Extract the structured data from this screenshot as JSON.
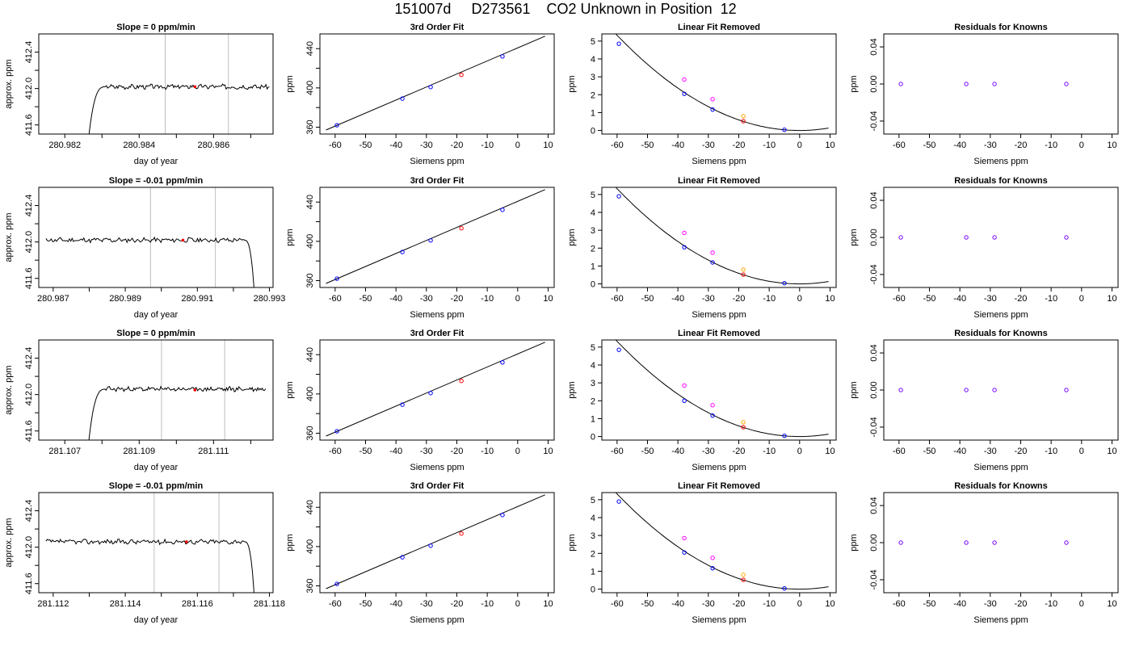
{
  "title": "151007d     D273561    CO2 Unknown in Position  12",
  "colors": {
    "unknown": "#ff0000",
    "known": "#0000ff",
    "raw": "#ff00ff",
    "other": "#ffa500",
    "line": "#000000",
    "mark": "#bebebe"
  },
  "chart_data": [
    {
      "row": 1,
      "type": "line",
      "title": "Slope =  0  ppm/min",
      "xlabel": "day of year",
      "ylabel": "approx. ppm",
      "xlim": [
        280.9813,
        280.9876
      ],
      "ylim": [
        411.5,
        412.6
      ],
      "xticks": [
        280.982,
        280.983,
        280.984,
        280.985,
        280.986,
        280.987
      ],
      "xtick_labels": [
        "280.982",
        "",
        "280.984",
        "",
        "280.986",
        ""
      ],
      "yticks": [
        411.6,
        411.8,
        412.0,
        412.2,
        412.4
      ],
      "ytick_labels": [
        "411.6",
        "",
        "412.0",
        "",
        "412.4"
      ],
      "markers": [
        280.9847,
        280.9864
      ],
      "unknown_point": [
        280.9855,
        412.02
      ],
      "trace": {
        "x_start": 280.9826,
        "x_end": 280.9875,
        "ramp": "up",
        "ramp_len": 0.0005,
        "base": 412.02,
        "seed": 3
      }
    },
    {
      "row": 1,
      "type": "scatter",
      "title": "3rd Order Fit",
      "xlabel": "Siemens ppm",
      "ylabel": "ppm",
      "xlim": [
        -65,
        12
      ],
      "ylim": [
        353,
        455
      ],
      "xticks": [
        -60,
        -50,
        -40,
        -30,
        -20,
        -10,
        0,
        10
      ],
      "xtick_labels": [
        "-60",
        "-50",
        "-40",
        "-30",
        "-20",
        "-10",
        "0",
        "10"
      ],
      "yticks": [
        360,
        380,
        400,
        420,
        440
      ],
      "ytick_labels": [
        "360",
        "",
        "400",
        "",
        "440"
      ],
      "line": [
        [
          -63,
          357.1
        ],
        [
          9,
          452.7
        ]
      ],
      "points": [
        {
          "x": -59.4,
          "y": 362.0,
          "c": "known"
        },
        {
          "x": -37.9,
          "y": 389.1,
          "c": "known"
        },
        {
          "x": -28.6,
          "y": 400.9,
          "c": "known"
        },
        {
          "x": -18.5,
          "y": 413.3,
          "c": "unknown"
        },
        {
          "x": -5.0,
          "y": 432.1,
          "c": "known"
        }
      ]
    },
    {
      "row": 1,
      "type": "scatter",
      "title": "Linear Fit Removed",
      "xlabel": "Siemens ppm",
      "ylabel": "ppm",
      "xlim": [
        -65,
        12
      ],
      "ylim": [
        -0.2,
        5.4
      ],
      "xticks": [
        -60,
        -50,
        -40,
        -30,
        -20,
        -10,
        0,
        10
      ],
      "xtick_labels": [
        "-60",
        "-50",
        "-40",
        "-30",
        "-20",
        "-10",
        "0",
        "10"
      ],
      "yticks": [
        0,
        1,
        2,
        3,
        4,
        5
      ],
      "ytick_labels": [
        "0",
        "1",
        "2",
        "3",
        "4",
        "5"
      ],
      "curve": {
        "a": 0.00148,
        "c": 0,
        "x0": -62,
        "x1": 9.5
      },
      "points": [
        {
          "x": -59.4,
          "y": 4.85,
          "c": "known"
        },
        {
          "x": -37.9,
          "y": 2.05,
          "c": "known"
        },
        {
          "x": -37.9,
          "y": 2.85,
          "c": "raw"
        },
        {
          "x": -28.6,
          "y": 1.17,
          "c": "known"
        },
        {
          "x": -28.6,
          "y": 1.75,
          "c": "raw"
        },
        {
          "x": -18.5,
          "y": 0.8,
          "c": "other"
        },
        {
          "x": -18.5,
          "y": 0.52,
          "c": "unknown"
        },
        {
          "x": -5.0,
          "y": 0.04,
          "c": "known"
        }
      ]
    },
    {
      "row": 1,
      "type": "scatter",
      "title": "Residuals for Knowns",
      "xlabel": "Siemens ppm",
      "ylabel": "ppm",
      "xlim": [
        -65,
        12
      ],
      "ylim": [
        -0.054,
        0.054
      ],
      "xticks": [
        -60,
        -50,
        -40,
        -30,
        -20,
        -10,
        0,
        10
      ],
      "xtick_labels": [
        "-60",
        "-50",
        "-40",
        "-30",
        "-20",
        "-10",
        "0",
        "10"
      ],
      "yticks": [
        -0.04,
        0,
        0.04
      ],
      "ytick_labels": [
        "-0.04",
        "0.00",
        "0.04"
      ],
      "points": [
        {
          "x": -59.4,
          "y": 0,
          "c": "residual"
        },
        {
          "x": -37.9,
          "y": 0,
          "c": "residual"
        },
        {
          "x": -28.6,
          "y": 0,
          "c": "residual"
        },
        {
          "x": -5.0,
          "y": 0,
          "c": "residual"
        }
      ]
    },
    {
      "row": 2,
      "type": "line",
      "title": "Slope =  -0.01  ppm/min",
      "xlabel": "day of year",
      "ylabel": "approx. ppm",
      "xlim": [
        280.9866,
        280.9931
      ],
      "ylim": [
        411.5,
        412.6
      ],
      "xticks": [
        280.987,
        280.988,
        280.989,
        280.99,
        280.991,
        280.992,
        280.993
      ],
      "xtick_labels": [
        "280.987",
        "",
        "280.989",
        "",
        "280.991",
        "",
        "280.993"
      ],
      "yticks": [
        411.6,
        411.8,
        412.0,
        412.2,
        412.4
      ],
      "ytick_labels": [
        "411.6",
        "",
        "412.0",
        "",
        "412.4"
      ],
      "markers": [
        280.9897,
        280.9915
      ],
      "unknown_point": [
        280.9906,
        412.02
      ],
      "trace": {
        "x_start": 280.9868,
        "x_end": 280.9926,
        "ramp": "down",
        "ramp_len": 0.0003,
        "base": 412.02,
        "seed": 11
      }
    },
    {
      "row": 2,
      "type": "scatter",
      "title": "3rd Order Fit",
      "xlabel": "Siemens ppm",
      "ylabel": "ppm",
      "xlim": [
        -65,
        12
      ],
      "ylim": [
        353,
        455
      ],
      "xticks": [
        -60,
        -50,
        -40,
        -30,
        -20,
        -10,
        0,
        10
      ],
      "xtick_labels": [
        "-60",
        "-50",
        "-40",
        "-30",
        "-20",
        "-10",
        "0",
        "10"
      ],
      "yticks": [
        360,
        380,
        400,
        420,
        440
      ],
      "ytick_labels": [
        "360",
        "",
        "400",
        "",
        "440"
      ],
      "line": [
        [
          -63,
          357.1
        ],
        [
          9,
          452.7
        ]
      ],
      "points": [
        {
          "x": -59.4,
          "y": 362.0,
          "c": "known"
        },
        {
          "x": -37.9,
          "y": 389.1,
          "c": "known"
        },
        {
          "x": -28.6,
          "y": 400.9,
          "c": "known"
        },
        {
          "x": -18.5,
          "y": 413.3,
          "c": "unknown"
        },
        {
          "x": -5.0,
          "y": 432.1,
          "c": "known"
        }
      ]
    },
    {
      "row": 2,
      "type": "scatter",
      "title": "Linear Fit Removed",
      "xlabel": "Siemens ppm",
      "ylabel": "ppm",
      "xlim": [
        -65,
        12
      ],
      "ylim": [
        -0.2,
        5.4
      ],
      "xticks": [
        -60,
        -50,
        -40,
        -30,
        -20,
        -10,
        0,
        10
      ],
      "xtick_labels": [
        "-60",
        "-50",
        "-40",
        "-30",
        "-20",
        "-10",
        "0",
        "10"
      ],
      "yticks": [
        0,
        1,
        2,
        3,
        4,
        5
      ],
      "ytick_labels": [
        "0",
        "1",
        "2",
        "3",
        "4",
        "5"
      ],
      "curve": {
        "a": 0.00148,
        "c": 0,
        "x0": -62,
        "x1": 9.5
      },
      "points": [
        {
          "x": -59.4,
          "y": 4.9,
          "c": "known"
        },
        {
          "x": -37.9,
          "y": 2.05,
          "c": "known"
        },
        {
          "x": -37.9,
          "y": 2.85,
          "c": "raw"
        },
        {
          "x": -28.6,
          "y": 1.2,
          "c": "known"
        },
        {
          "x": -28.6,
          "y": 1.75,
          "c": "raw"
        },
        {
          "x": -18.5,
          "y": 0.8,
          "c": "other"
        },
        {
          "x": -18.5,
          "y": 0.52,
          "c": "unknown"
        },
        {
          "x": -5.0,
          "y": 0.04,
          "c": "known"
        }
      ]
    },
    {
      "row": 2,
      "type": "scatter",
      "title": "Residuals for Knowns",
      "xlabel": "Siemens ppm",
      "ylabel": "ppm",
      "xlim": [
        -65,
        12
      ],
      "ylim": [
        -0.054,
        0.054
      ],
      "xticks": [
        -60,
        -50,
        -40,
        -30,
        -20,
        -10,
        0,
        10
      ],
      "xtick_labels": [
        "-60",
        "-50",
        "-40",
        "-30",
        "-20",
        "-10",
        "0",
        "10"
      ],
      "yticks": [
        -0.04,
        0,
        0.04
      ],
      "ytick_labels": [
        "-0.04",
        "0.00",
        "0.04"
      ],
      "points": [
        {
          "x": -59.4,
          "y": 0,
          "c": "residual"
        },
        {
          "x": -37.9,
          "y": 0,
          "c": "residual"
        },
        {
          "x": -28.6,
          "y": 0,
          "c": "residual"
        },
        {
          "x": -5.0,
          "y": 0,
          "c": "residual"
        }
      ]
    },
    {
      "row": 3,
      "type": "line",
      "title": "Slope =  0  ppm/min",
      "xlabel": "day of year",
      "ylabel": "approx. ppm",
      "xlim": [
        281.1063,
        281.1126
      ],
      "ylim": [
        411.5,
        412.6
      ],
      "xticks": [
        281.107,
        281.108,
        281.109,
        281.11,
        281.111,
        281.112
      ],
      "xtick_labels": [
        "281.107",
        "",
        "281.109",
        "",
        "281.111",
        ""
      ],
      "yticks": [
        411.6,
        411.8,
        412.0,
        412.2,
        412.4
      ],
      "ytick_labels": [
        "411.6",
        "",
        "412.0",
        "",
        "412.4"
      ],
      "markers": [
        281.1096,
        281.1113
      ],
      "unknown_point": [
        281.1105,
        412.05
      ],
      "trace": {
        "x_start": 281.1076,
        "x_end": 281.1124,
        "ramp": "up",
        "ramp_len": 0.0005,
        "base": 412.06,
        "seed": 23
      }
    },
    {
      "row": 3,
      "type": "scatter",
      "title": "3rd Order Fit",
      "xlabel": "Siemens ppm",
      "ylabel": "ppm",
      "xlim": [
        -65,
        12
      ],
      "ylim": [
        353,
        455
      ],
      "xticks": [
        -60,
        -50,
        -40,
        -30,
        -20,
        -10,
        0,
        10
      ],
      "xtick_labels": [
        "-60",
        "-50",
        "-40",
        "-30",
        "-20",
        "-10",
        "0",
        "10"
      ],
      "yticks": [
        360,
        380,
        400,
        420,
        440
      ],
      "ytick_labels": [
        "360",
        "",
        "400",
        "",
        "440"
      ],
      "line": [
        [
          -63,
          357.1
        ],
        [
          9,
          452.7
        ]
      ],
      "points": [
        {
          "x": -59.4,
          "y": 362.0,
          "c": "known"
        },
        {
          "x": -37.9,
          "y": 389.1,
          "c": "known"
        },
        {
          "x": -28.6,
          "y": 400.9,
          "c": "known"
        },
        {
          "x": -18.5,
          "y": 413.3,
          "c": "unknown"
        },
        {
          "x": -5.0,
          "y": 432.1,
          "c": "known"
        }
      ]
    },
    {
      "row": 3,
      "type": "scatter",
      "title": "Linear Fit Removed",
      "xlabel": "Siemens ppm",
      "ylabel": "ppm",
      "xlim": [
        -65,
        12
      ],
      "ylim": [
        -0.2,
        5.4
      ],
      "xticks": [
        -60,
        -50,
        -40,
        -30,
        -20,
        -10,
        0,
        10
      ],
      "xtick_labels": [
        "-60",
        "-50",
        "-40",
        "-30",
        "-20",
        "-10",
        "0",
        "10"
      ],
      "yticks": [
        0,
        1,
        2,
        3,
        4,
        5
      ],
      "ytick_labels": [
        "0",
        "1",
        "2",
        "3",
        "4",
        "5"
      ],
      "curve": {
        "a": 0.00148,
        "c": 0,
        "x0": -62,
        "x1": 9.5
      },
      "points": [
        {
          "x": -59.4,
          "y": 4.85,
          "c": "known"
        },
        {
          "x": -37.9,
          "y": 2.0,
          "c": "known"
        },
        {
          "x": -37.9,
          "y": 2.85,
          "c": "raw"
        },
        {
          "x": -28.6,
          "y": 1.17,
          "c": "known"
        },
        {
          "x": -28.6,
          "y": 1.75,
          "c": "raw"
        },
        {
          "x": -18.5,
          "y": 0.8,
          "c": "other"
        },
        {
          "x": -18.5,
          "y": 0.52,
          "c": "unknown"
        },
        {
          "x": -5.0,
          "y": 0.04,
          "c": "known"
        }
      ]
    },
    {
      "row": 3,
      "type": "scatter",
      "title": "Residuals for Knowns",
      "xlabel": "Siemens ppm",
      "ylabel": "ppm",
      "xlim": [
        -65,
        12
      ],
      "ylim": [
        -0.054,
        0.054
      ],
      "xticks": [
        -60,
        -50,
        -40,
        -30,
        -20,
        -10,
        0,
        10
      ],
      "xtick_labels": [
        "-60",
        "-50",
        "-40",
        "-30",
        "-20",
        "-10",
        "0",
        "10"
      ],
      "yticks": [
        -0.04,
        0,
        0.04
      ],
      "ytick_labels": [
        "-0.04",
        "0.00",
        "0.04"
      ],
      "points": [
        {
          "x": -59.4,
          "y": 0,
          "c": "residual"
        },
        {
          "x": -37.9,
          "y": 0,
          "c": "residual"
        },
        {
          "x": -28.6,
          "y": 0,
          "c": "residual"
        },
        {
          "x": -5.0,
          "y": 0,
          "c": "residual"
        }
      ]
    },
    {
      "row": 4,
      "type": "line",
      "title": "Slope =  -0.01  ppm/min",
      "xlabel": "day of year",
      "ylabel": "approx. ppm",
      "xlim": [
        281.1116,
        281.1181
      ],
      "ylim": [
        411.5,
        412.6
      ],
      "xticks": [
        281.112,
        281.113,
        281.114,
        281.115,
        281.116,
        281.117,
        281.118
      ],
      "xtick_labels": [
        "281.112",
        "",
        "281.114",
        "",
        "281.116",
        "",
        "281.118"
      ],
      "yticks": [
        411.6,
        411.8,
        412.0,
        412.2,
        412.4
      ],
      "ytick_labels": [
        "411.6",
        "",
        "412.0",
        "",
        "412.4"
      ],
      "markers": [
        281.1148,
        281.1166
      ],
      "unknown_point": [
        281.1157,
        412.06
      ],
      "trace": {
        "x_start": 281.1118,
        "x_end": 281.1176,
        "ramp": "down",
        "ramp_len": 0.0003,
        "base": 412.06,
        "seed": 37
      }
    },
    {
      "row": 4,
      "type": "scatter",
      "title": "3rd Order Fit",
      "xlabel": "Siemens ppm",
      "ylabel": "ppm",
      "xlim": [
        -65,
        12
      ],
      "ylim": [
        353,
        455
      ],
      "xticks": [
        -60,
        -50,
        -40,
        -30,
        -20,
        -10,
        0,
        10
      ],
      "xtick_labels": [
        "-60",
        "-50",
        "-40",
        "-30",
        "-20",
        "-10",
        "0",
        "10"
      ],
      "yticks": [
        360,
        380,
        400,
        420,
        440
      ],
      "ytick_labels": [
        "360",
        "",
        "400",
        "",
        "440"
      ],
      "line": [
        [
          -63,
          357.1
        ],
        [
          9,
          452.7
        ]
      ],
      "points": [
        {
          "x": -59.4,
          "y": 362.0,
          "c": "known"
        },
        {
          "x": -37.9,
          "y": 389.1,
          "c": "known"
        },
        {
          "x": -28.6,
          "y": 400.9,
          "c": "known"
        },
        {
          "x": -18.5,
          "y": 413.3,
          "c": "unknown"
        },
        {
          "x": -5.0,
          "y": 432.1,
          "c": "known"
        }
      ]
    },
    {
      "row": 4,
      "type": "scatter",
      "title": "Linear Fit Removed",
      "xlabel": "Siemens ppm",
      "ylabel": "ppm",
      "xlim": [
        -65,
        12
      ],
      "ylim": [
        -0.2,
        5.4
      ],
      "xticks": [
        -60,
        -50,
        -40,
        -30,
        -20,
        -10,
        0,
        10
      ],
      "xtick_labels": [
        "-60",
        "-50",
        "-40",
        "-30",
        "-20",
        "-10",
        "0",
        "10"
      ],
      "yticks": [
        0,
        1,
        2,
        3,
        4,
        5
      ],
      "ytick_labels": [
        "0",
        "1",
        "2",
        "3",
        "4",
        "5"
      ],
      "curve": {
        "a": 0.00148,
        "c": 0,
        "x0": -62,
        "x1": 9.5
      },
      "points": [
        {
          "x": -59.4,
          "y": 4.9,
          "c": "known"
        },
        {
          "x": -37.9,
          "y": 2.05,
          "c": "known"
        },
        {
          "x": -37.9,
          "y": 2.85,
          "c": "raw"
        },
        {
          "x": -28.6,
          "y": 1.17,
          "c": "known"
        },
        {
          "x": -28.6,
          "y": 1.75,
          "c": "raw"
        },
        {
          "x": -18.5,
          "y": 0.8,
          "c": "other"
        },
        {
          "x": -18.5,
          "y": 0.52,
          "c": "unknown"
        },
        {
          "x": -5.0,
          "y": 0.04,
          "c": "known"
        }
      ]
    },
    {
      "row": 4,
      "type": "scatter",
      "title": "Residuals for Knowns",
      "xlabel": "Siemens ppm",
      "ylabel": "ppm",
      "xlim": [
        -65,
        12
      ],
      "ylim": [
        -0.054,
        0.054
      ],
      "xticks": [
        -60,
        -50,
        -40,
        -30,
        -20,
        -10,
        0,
        10
      ],
      "xtick_labels": [
        "-60",
        "-50",
        "-40",
        "-30",
        "-20",
        "-10",
        "0",
        "10"
      ],
      "yticks": [
        -0.04,
        0,
        0.04
      ],
      "ytick_labels": [
        "-0.04",
        "0.00",
        "0.04"
      ],
      "points": [
        {
          "x": -59.4,
          "y": 0,
          "c": "residual"
        },
        {
          "x": -37.9,
          "y": 0,
          "c": "residual"
        },
        {
          "x": -28.6,
          "y": 0,
          "c": "residual"
        },
        {
          "x": -5.0,
          "y": 0,
          "c": "residual"
        }
      ]
    }
  ]
}
